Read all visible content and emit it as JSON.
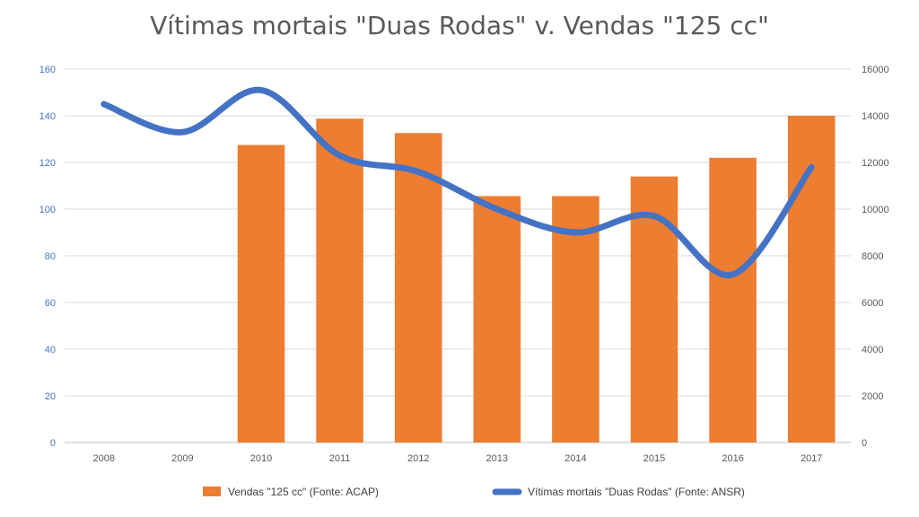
{
  "chart_data": {
    "type": "bar",
    "title": "Vítimas mortais \"Duas Rodas\" v. Vendas \"125 cc\"",
    "categories": [
      "2008",
      "2009",
      "2010",
      "2011",
      "2012",
      "2013",
      "2014",
      "2015",
      "2016",
      "2017"
    ],
    "series": [
      {
        "name": "Vendas \"125 cc\" (Fonte: ACAP)",
        "type": "bar",
        "axis": "right",
        "color": "#ed7d31",
        "values": [
          null,
          null,
          12750,
          13880,
          13260,
          10560,
          10560,
          11400,
          12200,
          14000
        ]
      },
      {
        "name": "Vítimas mortais \"Duas Rodas\" (Fonte: ANSR)",
        "type": "line",
        "axis": "left",
        "color": "#4472c4",
        "values": [
          145,
          133,
          151,
          123,
          116,
          100,
          90,
          97,
          72,
          118
        ]
      }
    ],
    "y_left": {
      "min": 0,
      "max": 160,
      "ticks": [
        "0",
        "20",
        "40",
        "60",
        "80",
        "100",
        "120",
        "140",
        "160"
      ]
    },
    "y_right": {
      "min": 0,
      "max": 16000,
      "ticks": [
        "0",
        "2000",
        "4000",
        "6000",
        "8000",
        "10000",
        "12000",
        "14000",
        "16000"
      ]
    },
    "grid": true,
    "legend_position": "bottom"
  }
}
